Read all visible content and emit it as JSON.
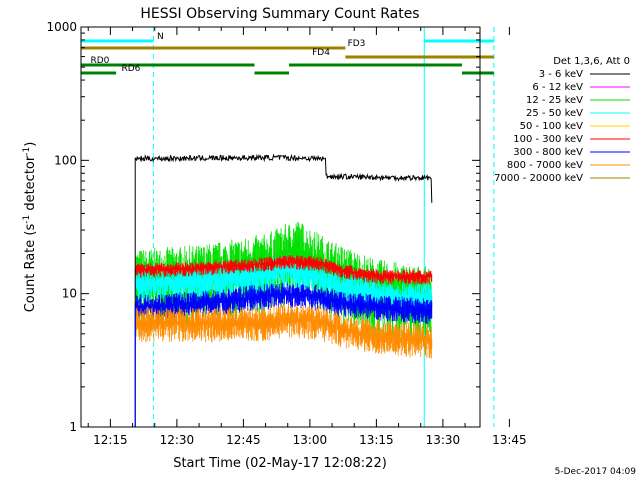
{
  "chart_data": {
    "type": "line",
    "title": "HESSI Observing Summary Count Rates",
    "xlabel": "Start Time (02-May-17 12:08:22)",
    "ylabel_main": "Count Rate (s",
    "ylabel_sup1": "-1",
    "ylabel_mid": " detector",
    "ylabel_sup2": "-1",
    "ylabel_end": ")",
    "yscale": "log",
    "ylim": [
      1,
      1000
    ],
    "xlim_minutes": [
      8.37,
      98.37
    ],
    "xtick_minutes": [
      15,
      30,
      45,
      60,
      75,
      90,
      105
    ],
    "xtick_labels": [
      "12:15",
      "12:30",
      "12:45",
      "13:00",
      "13:15",
      "13:30",
      "13:45"
    ],
    "ytick_values": [
      1,
      10,
      100,
      1000
    ],
    "ytick_labels": [
      "1",
      "10",
      "100",
      "1000"
    ],
    "timestamp": "5-Dec-2017 04:09",
    "legend_title": "Det 1,3,6, Att 0",
    "series": [
      {
        "name": "3 - 6 keV",
        "color": "#000000",
        "points": [
          [
            20.6,
            1
          ],
          [
            20.6,
            103
          ],
          [
            38,
            104
          ],
          [
            52,
            105
          ],
          [
            63.5,
            103
          ],
          [
            63.5,
            76
          ],
          [
            80,
            74
          ],
          [
            87.5,
            74
          ],
          [
            87.5,
            48
          ]
        ]
      },
      {
        "name": "6 - 12 keV",
        "color": "#ff00ff",
        "points": []
      },
      {
        "name": "12 - 25 keV",
        "color": "#00e000",
        "points": [
          [
            20.6,
            13
          ],
          [
            35,
            14
          ],
          [
            50,
            17
          ],
          [
            57,
            22
          ],
          [
            60,
            19
          ],
          [
            65,
            15
          ],
          [
            75,
            11
          ],
          [
            87.5,
            9.5
          ]
        ]
      },
      {
        "name": "25 - 50 keV",
        "color": "#00ffff",
        "points": [
          [
            20.6,
            12
          ],
          [
            35,
            12.5
          ],
          [
            48,
            13.5
          ],
          [
            55,
            15
          ],
          [
            60,
            14
          ],
          [
            65,
            12
          ],
          [
            75,
            10
          ],
          [
            87.5,
            9
          ]
        ]
      },
      {
        "name": "50 - 100 keV",
        "color": "#ffd700",
        "points": []
      },
      {
        "name": "100 - 300 keV",
        "color": "#ff0000",
        "points": [
          [
            20.6,
            15
          ],
          [
            35,
            15.5
          ],
          [
            48,
            16.5
          ],
          [
            55,
            17.5
          ],
          [
            62,
            17
          ],
          [
            67,
            15
          ],
          [
            75,
            13.5
          ],
          [
            87.5,
            13.5
          ]
        ]
      },
      {
        "name": "300 - 800 keV",
        "color": "#0000ff",
        "points": [
          [
            20.6,
            8
          ],
          [
            35,
            8.5
          ],
          [
            48,
            9.5
          ],
          [
            55,
            10
          ],
          [
            62,
            9.5
          ],
          [
            67,
            8.5
          ],
          [
            75,
            8
          ],
          [
            87.5,
            7.5
          ]
        ]
      },
      {
        "name": "800 - 7000 keV",
        "color": "#ff8c00",
        "points": [
          [
            20.6,
            6
          ],
          [
            35,
            6
          ],
          [
            48,
            6
          ],
          [
            55,
            6.5
          ],
          [
            62,
            6.2
          ],
          [
            67,
            5.5
          ],
          [
            75,
            4.8
          ],
          [
            87.5,
            4.5
          ]
        ]
      },
      {
        "name": "7000 - 20000 keV",
        "color": "#a08000",
        "points": []
      }
    ],
    "flags": [
      {
        "label": "N",
        "color": "#00ffff",
        "label_color": "#00ffff",
        "label_at": 25.5,
        "level": 0,
        "segments": [
          [
            8.37,
            24.7
          ],
          [
            85.8,
            101.5
          ]
        ]
      },
      {
        "label": "FD3",
        "color": "#a08000",
        "label_color": "#a08000",
        "label_at": 68.5,
        "level": 1,
        "segments": [
          [
            8.37,
            68.0
          ]
        ]
      },
      {
        "label": "FD4",
        "color": "#a08000",
        "label_color": "#a08000",
        "label_at": 60.5,
        "level": 2,
        "segments": [
          [
            68.0,
            101.5
          ]
        ]
      },
      {
        "label": "RD0",
        "color": "#008000",
        "label_color": "#008000",
        "label_at": 10.5,
        "level": 3,
        "segments": [
          [
            8.37,
            47.5
          ],
          [
            55.3,
            94.3
          ]
        ]
      },
      {
        "label": "RD6",
        "color": "#008000",
        "label_color": "#008000",
        "label_at": 17.5,
        "level": 4,
        "segments": [
          [
            8.37,
            16.3
          ],
          [
            47.5,
            55.3
          ],
          [
            94.3,
            101.5
          ]
        ]
      }
    ],
    "vlines": [
      {
        "minute": 8.37,
        "color": "#00ffff",
        "style": "solid"
      },
      {
        "minute": 24.7,
        "color": "#00ffff",
        "style": "dashed"
      },
      {
        "minute": 85.8,
        "color": "#00ffff",
        "style": "solid"
      },
      {
        "minute": 101.5,
        "color": "#00ffff",
        "style": "dashed"
      }
    ]
  }
}
